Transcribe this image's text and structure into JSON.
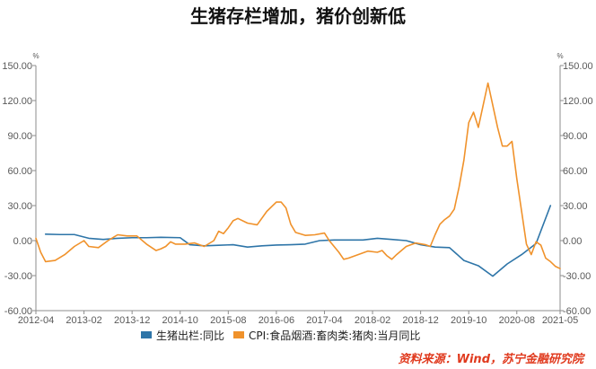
{
  "chart_data": {
    "type": "line",
    "title": "生猪存栏增加，猪价创新低",
    "left_axis": {
      "unit": "%",
      "ylim": [
        -60,
        150
      ],
      "ticks": [
        "150.00",
        "120.00",
        "90.00",
        "60.00",
        "30.00",
        "0.00",
        "-30.00",
        "-60.00"
      ]
    },
    "right_axis": {
      "unit": "%",
      "ylim": [
        -60,
        150
      ],
      "ticks": [
        "150.00",
        "120.00",
        "90.00",
        "60.00",
        "30.00",
        "0.00",
        "-30.00",
        "-60.00"
      ]
    },
    "x_range": [
      "2012-04",
      "2021-05"
    ],
    "x_ticks": [
      "2012-04",
      "2013-02",
      "2013-12",
      "2014-10",
      "2015-08",
      "2016-06",
      "2017-04",
      "2018-02",
      "2018-12",
      "2019-10",
      "2020-08",
      "2021-05"
    ],
    "grid": false,
    "legend_position": "bottom",
    "series": [
      {
        "name": "生猪出栏:同比",
        "color": "#2e75a8",
        "points": [
          [
            "2012-06",
            5.5
          ],
          [
            "2012-09",
            5.2
          ],
          [
            "2012-12",
            5.2
          ],
          [
            "2013-03",
            2.0
          ],
          [
            "2013-06",
            1.0
          ],
          [
            "2013-09",
            2.0
          ],
          [
            "2013-12",
            2.5
          ],
          [
            "2014-03",
            2.5
          ],
          [
            "2014-06",
            2.8
          ],
          [
            "2014-10",
            2.5
          ],
          [
            "2014-12",
            -3.5
          ],
          [
            "2015-03",
            -4.5
          ],
          [
            "2015-06",
            -4.0
          ],
          [
            "2015-09",
            -3.5
          ],
          [
            "2015-12",
            -5.5
          ],
          [
            "2016-03",
            -4.5
          ],
          [
            "2016-06",
            -3.8
          ],
          [
            "2016-09",
            -3.5
          ],
          [
            "2016-12",
            -3.0
          ],
          [
            "2017-03",
            0.0
          ],
          [
            "2017-06",
            0.5
          ],
          [
            "2017-09",
            0.5
          ],
          [
            "2017-12",
            0.5
          ],
          [
            "2018-03",
            2.0
          ],
          [
            "2018-06",
            1.0
          ],
          [
            "2018-09",
            0.0
          ],
          [
            "2018-12",
            -3.5
          ],
          [
            "2019-03",
            -5.5
          ],
          [
            "2019-06",
            -6.0
          ],
          [
            "2019-09",
            -17.0
          ],
          [
            "2019-12",
            -21.5
          ],
          [
            "2020-03",
            -30.5
          ],
          [
            "2020-06",
            -20.0
          ],
          [
            "2020-09",
            -12.0
          ],
          [
            "2020-12",
            -2.5
          ],
          [
            "2021-03",
            30.0
          ]
        ]
      },
      {
        "name": "CPI:食品烟酒:畜肉类:猪肉:当月同比",
        "color": "#f0922b",
        "points": [
          [
            "2012-04",
            2.0
          ],
          [
            "2012-05",
            -10.0
          ],
          [
            "2012-06",
            -18.0
          ],
          [
            "2012-08",
            -17.0
          ],
          [
            "2012-10",
            -12.0
          ],
          [
            "2012-12",
            -5.0
          ],
          [
            "2013-02",
            0.0
          ],
          [
            "2013-03",
            -5.0
          ],
          [
            "2013-05",
            -6.0
          ],
          [
            "2013-07",
            0.0
          ],
          [
            "2013-09",
            5.0
          ],
          [
            "2013-11",
            4.0
          ],
          [
            "2014-01",
            4.0
          ],
          [
            "2014-03",
            -3.0
          ],
          [
            "2014-05",
            -8.5
          ],
          [
            "2014-06",
            -7.0
          ],
          [
            "2014-07",
            -5.0
          ],
          [
            "2014-08",
            -1.0
          ],
          [
            "2014-09",
            -3.0
          ],
          [
            "2014-11",
            -3.0
          ],
          [
            "2015-01",
            -2.0
          ],
          [
            "2015-03",
            -5.0
          ],
          [
            "2015-05",
            0.0
          ],
          [
            "2015-06",
            8.0
          ],
          [
            "2015-07",
            6.0
          ],
          [
            "2015-08",
            11.0
          ],
          [
            "2015-09",
            17.0
          ],
          [
            "2015-10",
            19.0
          ],
          [
            "2015-12",
            15.0
          ],
          [
            "2016-02",
            13.5
          ],
          [
            "2016-04",
            25.0
          ],
          [
            "2016-06",
            33.0
          ],
          [
            "2016-07",
            33.0
          ],
          [
            "2016-08",
            28.0
          ],
          [
            "2016-09",
            14.0
          ],
          [
            "2016-10",
            7.0
          ],
          [
            "2016-12",
            4.5
          ],
          [
            "2017-02",
            5.0
          ],
          [
            "2017-04",
            6.5
          ],
          [
            "2017-05",
            0.0
          ],
          [
            "2017-07",
            -10.0
          ],
          [
            "2017-08",
            -16.0
          ],
          [
            "2017-09",
            -15.0
          ],
          [
            "2017-11",
            -12.0
          ],
          [
            "2018-01",
            -9.0
          ],
          [
            "2018-03",
            -10.0
          ],
          [
            "2018-04",
            -8.5
          ],
          [
            "2018-05",
            -13.0
          ],
          [
            "2018-06",
            -16.0
          ],
          [
            "2018-07",
            -12.0
          ],
          [
            "2018-09",
            -5.0
          ],
          [
            "2018-11",
            -2.0
          ],
          [
            "2019-01",
            -3.5
          ],
          [
            "2019-02",
            -5.0
          ],
          [
            "2019-03",
            5.0
          ],
          [
            "2019-04",
            14.0
          ],
          [
            "2019-05",
            18.0
          ],
          [
            "2019-06",
            21.0
          ],
          [
            "2019-07",
            27.0
          ],
          [
            "2019-08",
            46.0
          ],
          [
            "2019-09",
            69.0
          ],
          [
            "2019-10",
            101.0
          ],
          [
            "2019-11",
            110.0
          ],
          [
            "2019-12",
            97.0
          ],
          [
            "2020-01",
            116.0
          ],
          [
            "2020-02",
            135.0
          ],
          [
            "2020-03",
            116.0
          ],
          [
            "2020-04",
            97.0
          ],
          [
            "2020-05",
            81.0
          ],
          [
            "2020-06",
            81.0
          ],
          [
            "2020-07",
            85.0
          ],
          [
            "2020-08",
            53.0
          ],
          [
            "2020-09",
            25.0
          ],
          [
            "2020-10",
            -3.0
          ],
          [
            "2020-11",
            -12.0
          ],
          [
            "2020-12",
            -1.0
          ],
          [
            "2021-01",
            -3.9
          ],
          [
            "2021-02",
            -15.0
          ],
          [
            "2021-03",
            -18.0
          ],
          [
            "2021-04",
            -22.0
          ],
          [
            "2021-05",
            -24.0
          ]
        ]
      }
    ],
    "source_note": "资料来源：Wind，苏宁金融研究院"
  }
}
